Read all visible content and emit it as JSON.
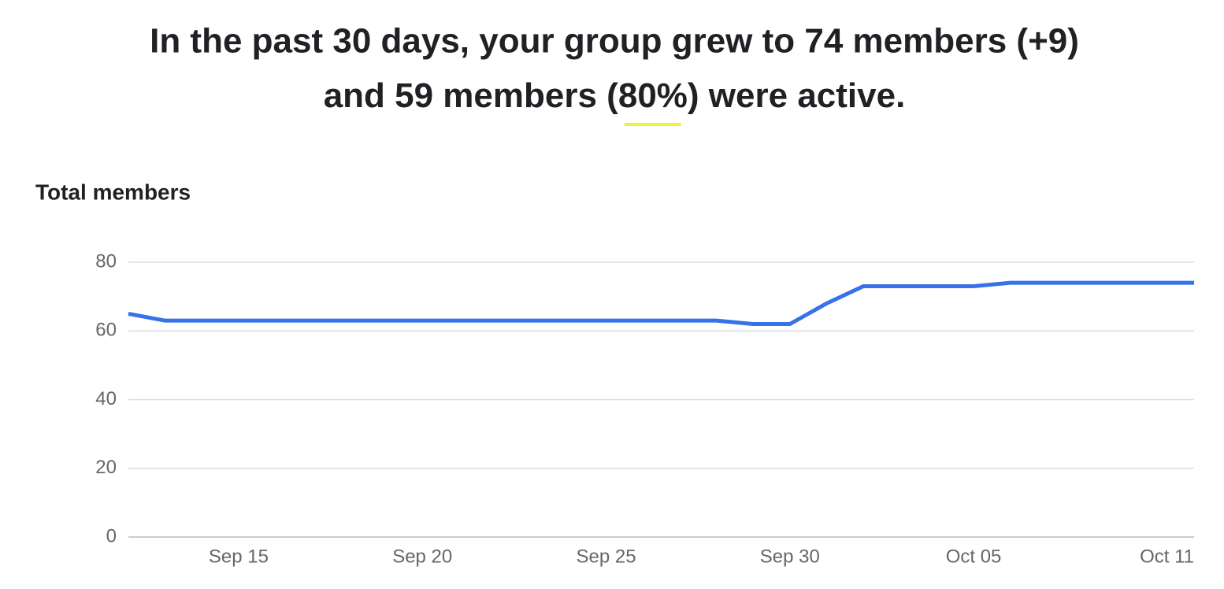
{
  "headline": {
    "line1": "In the past 30 days, your group grew to 74 members (+9)",
    "line2": [
      "and 59 members (",
      "80%",
      ") were active."
    ]
  },
  "chart_data": {
    "type": "line",
    "title": "Total members",
    "x": [
      "Sep 12",
      "Sep 13",
      "Sep 14",
      "Sep 15",
      "Sep 16",
      "Sep 17",
      "Sep 18",
      "Sep 19",
      "Sep 20",
      "Sep 21",
      "Sep 22",
      "Sep 23",
      "Sep 24",
      "Sep 25",
      "Sep 26",
      "Sep 27",
      "Sep 28",
      "Sep 29",
      "Sep 30",
      "Oct 01",
      "Oct 02",
      "Oct 03",
      "Oct 04",
      "Oct 05",
      "Oct 06",
      "Oct 07",
      "Oct 08",
      "Oct 09",
      "Oct 10",
      "Oct 11"
    ],
    "series": [
      {
        "name": "Total members",
        "color": "#3672e8",
        "values": [
          65,
          63,
          63,
          63,
          63,
          63,
          63,
          63,
          63,
          63,
          63,
          63,
          63,
          63,
          63,
          63,
          63,
          62,
          62,
          68,
          73,
          73,
          73,
          73,
          74,
          74,
          74,
          74,
          74,
          74
        ]
      }
    ],
    "xticks": [
      "Sep 15",
      "Sep 20",
      "Sep 25",
      "Sep 30",
      "Oct 05",
      "Oct 11"
    ],
    "ylim": [
      0,
      80
    ],
    "yticks": [
      0,
      20,
      40,
      60,
      80
    ],
    "grid": true
  }
}
